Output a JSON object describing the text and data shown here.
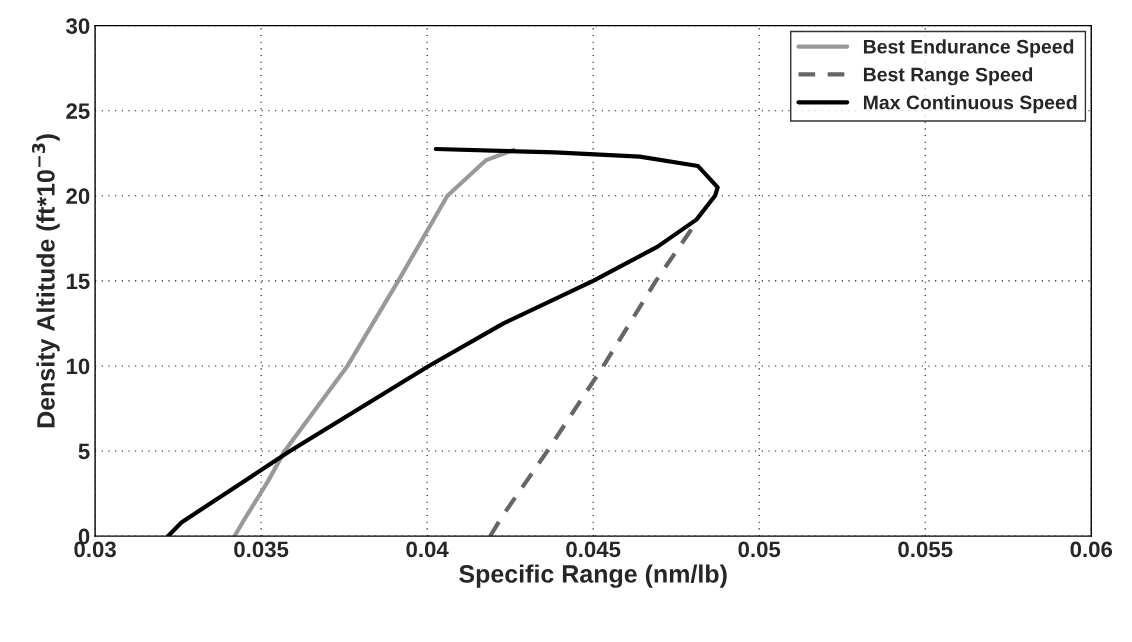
{
  "chart_data": {
    "type": "line",
    "xlabel": "Specific Range (nm/lb)",
    "ylabel": "Density Altitude (ft*10$^{−3}$)",
    "xlim": [
      0.03,
      0.06
    ],
    "xticks": [
      0.03,
      0.035,
      0.04,
      0.045,
      0.05,
      0.055,
      0.06
    ],
    "ylim": [
      0,
      30
    ],
    "yticks": [
      0,
      5,
      10,
      15,
      20,
      25,
      30
    ],
    "grid": true,
    "legend": "top right",
    "series": [
      {
        "name": "Best Endurance Speed",
        "color": "#999999",
        "line_style": "solid",
        "x": [
          0.0342,
          0.03444,
          0.0352,
          0.03571,
          0.0376,
          0.03913,
          0.04061,
          0.04178,
          0.0426
        ],
        "values": [
          0,
          0.8,
          3.2,
          5,
          10,
          15,
          20,
          22.1,
          22.7
        ]
      },
      {
        "name": "Best Range Speed",
        "color": "#666666",
        "line_style": "dashed",
        "x": [
          0.0419,
          0.04224,
          0.04362,
          0.04531,
          0.04689,
          0.04816
        ],
        "values": [
          0,
          1.1,
          5,
          10,
          15,
          18.6
        ]
      },
      {
        "name": "Max Continuous Speed",
        "color": "#000000",
        "line_style": "solid",
        "x": [
          0.0322,
          0.0326,
          0.03587,
          0.04005,
          0.0423,
          0.045,
          0.04693,
          0.04811,
          0.04867,
          0.04875,
          0.04816,
          0.0464,
          0.04385,
          0.04026
        ],
        "values": [
          0,
          0.8,
          5,
          10,
          12.5,
          15,
          17,
          18.6,
          20,
          20.5,
          21.75,
          22.3,
          22.55,
          22.75
        ]
      }
    ]
  }
}
